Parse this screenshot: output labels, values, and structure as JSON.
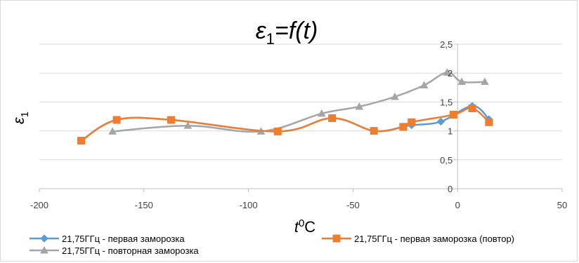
{
  "chart_data": {
    "type": "line",
    "title": {
      "main": "ε",
      "sub": "1",
      "rest": "=f(t)"
    },
    "xlabel": {
      "main": "t",
      "sup": "0",
      "rest": "C"
    },
    "ylabel": {
      "main": "ε",
      "sub": "1"
    },
    "xlim": [
      -200,
      50
    ],
    "ylim": [
      0,
      2.5
    ],
    "x_ticks": [
      -200,
      -150,
      -100,
      -50,
      0,
      50
    ],
    "y_ticks": [
      0,
      0.5,
      1,
      1.5,
      2,
      2.5
    ],
    "x_tick_labels": [
      "-200",
      "-150",
      "-100",
      "-50",
      "0",
      "50"
    ],
    "y_tick_labels": [
      "0",
      "0,5",
      "1",
      "1,5",
      "2",
      "2,5"
    ],
    "grid": "horizontal",
    "series": [
      {
        "name": "21,75ГГц - первая заморозка",
        "color": "#5b9bd5",
        "marker": "diamond",
        "x": [
          -180,
          -163,
          -137,
          -86,
          -60,
          -40,
          -26,
          -22,
          -8,
          7,
          15
        ],
        "y": [
          0.83,
          1.19,
          1.19,
          0.99,
          1.22,
          1.0,
          1.07,
          1.1,
          1.16,
          1.43,
          1.2
        ]
      },
      {
        "name": "21,75ГГц - первая заморозка (повтор)",
        "color": "#ed7d31",
        "marker": "square",
        "x": [
          -180,
          -163,
          -137,
          -86,
          -60,
          -40,
          -26,
          -22,
          -2,
          7,
          15
        ],
        "y": [
          0.83,
          1.19,
          1.19,
          0.99,
          1.22,
          1.0,
          1.07,
          1.15,
          1.28,
          1.39,
          1.15
        ]
      },
      {
        "name": "21,75ГГц - повторная заморозка",
        "color": "#a5a5a5",
        "marker": "triangle",
        "x": [
          -165,
          -129,
          -94,
          -65,
          -47,
          -30,
          -16,
          -5,
          2,
          13
        ],
        "y": [
          0.99,
          1.09,
          0.99,
          1.3,
          1.42,
          1.59,
          1.79,
          2.01,
          1.85,
          1.85
        ]
      }
    ],
    "legend": [
      {
        "label": "21,75ГГц - первая заморозка",
        "color": "#5b9bd5",
        "marker": "diamond"
      },
      {
        "label": "21,75ГГц - первая заморозка (повтор)",
        "color": "#ed7d31",
        "marker": "square"
      },
      {
        "label": "21,75ГГц - повторная заморозка",
        "color": "#a5a5a5",
        "marker": "triangle"
      }
    ],
    "legend_position": "bottom-left"
  }
}
